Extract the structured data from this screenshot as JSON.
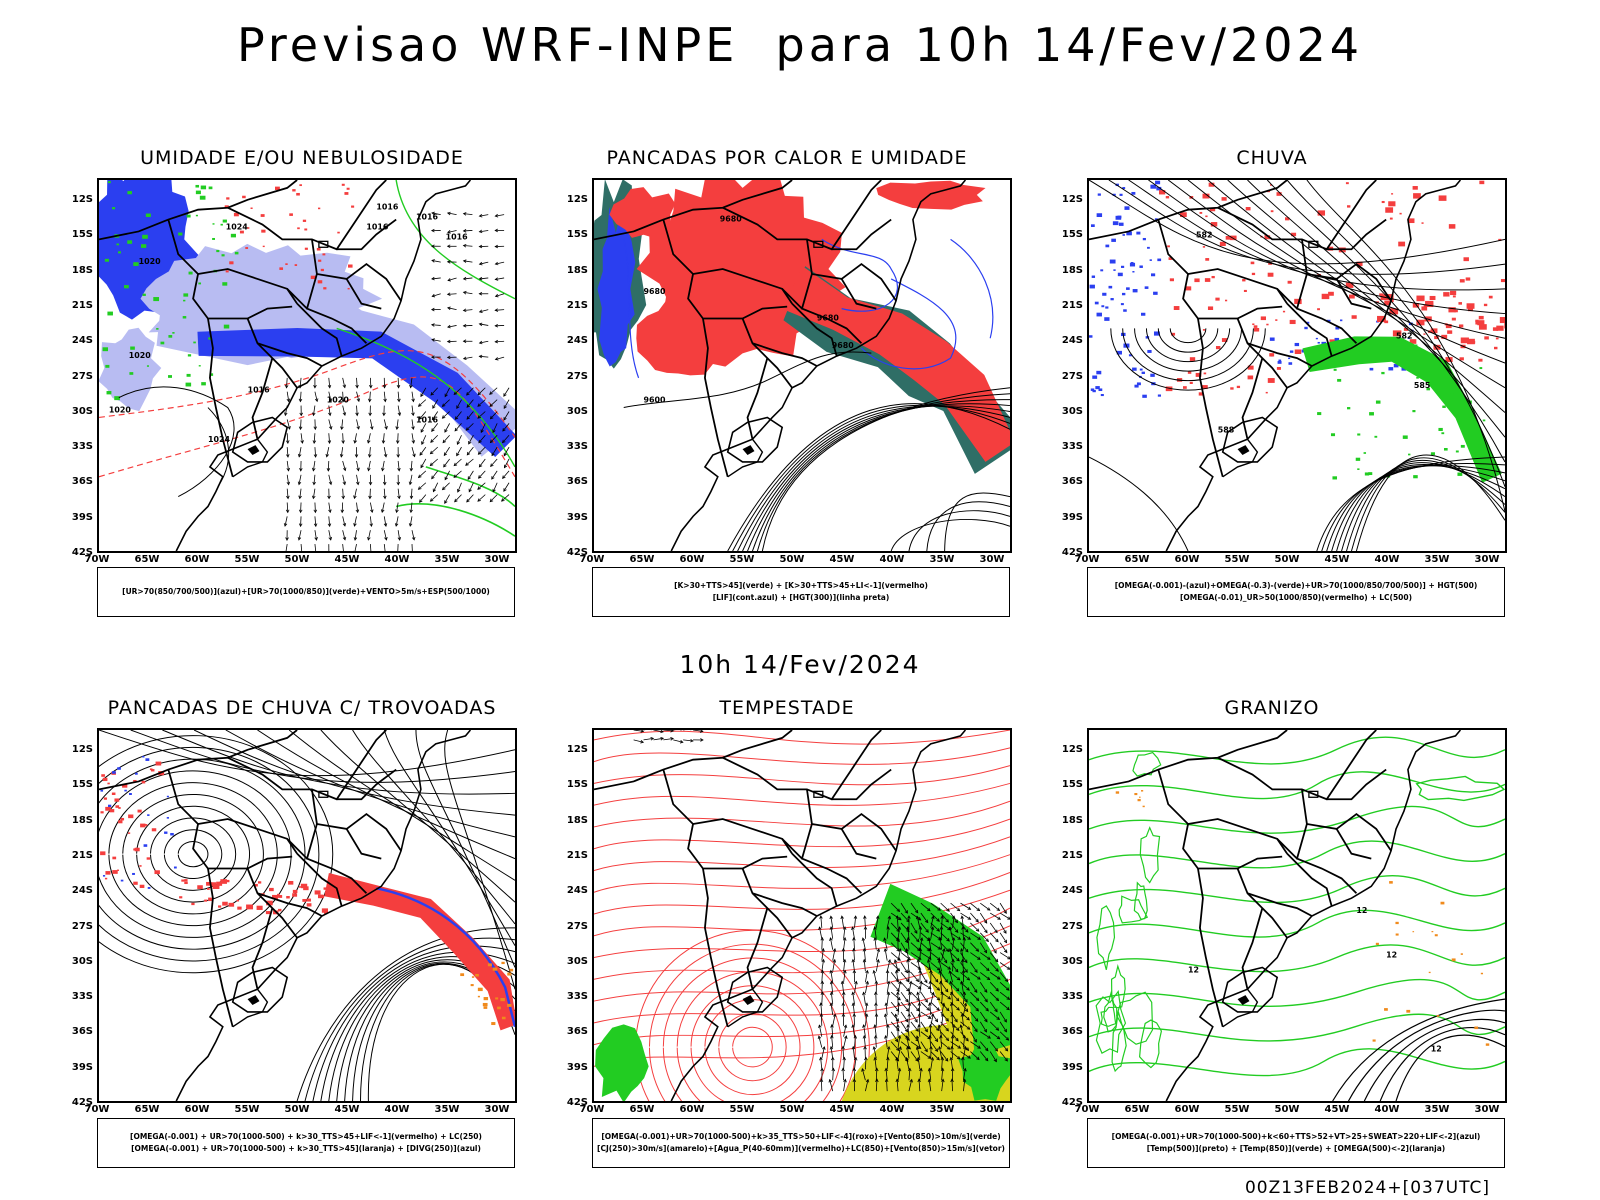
{
  "title": "Previsao WRF-INPE  para 10h 14/Fev/2024",
  "mid_title": "10h 14/Fev/2024",
  "footer": "00Z13FEB2024+[037UTC]",
  "lat_labels": [
    "12S",
    "15S",
    "18S",
    "21S",
    "24S",
    "27S",
    "30S",
    "33S",
    "36S",
    "39S",
    "42S"
  ],
  "lon_labels": [
    "70W",
    "65W",
    "60W",
    "55W",
    "50W",
    "45W",
    "40W",
    "35W",
    "30W"
  ],
  "panels": [
    {
      "title": "UMIDADE E/OU NEBULOSIDADE",
      "legend": [
        "[UR>70(850/700/500)](azul)+[UR>70(1000/850)](verde)+VENTO>5m/s+ESP(500/1000)"
      ]
    },
    {
      "title": "PANCADAS POR CALOR E UMIDADE",
      "legend": [
        "[K>30+TTS>45](verde) + [K>30+TTS>45+LI<-1](vermelho)",
        "[LIF](cont.azul) + [HGT(300)](linha preta)"
      ]
    },
    {
      "title": "CHUVA",
      "legend": [
        "[OMEGA(-0.001)-(azul)+OMEGA(-0.3)-(verde)+UR>70(1000/850/700/500)] + HGT(500)",
        "[OMEGA(-0.01)_UR>50(1000/850)(vermelho) + LC(500)"
      ]
    },
    {
      "title": "PANCADAS DE CHUVA C/ TROVOADAS",
      "legend": [
        "[OMEGA(-0.001) + UR>70(1000-500) + k>30_TTS>45+LIF<-1](vermelho) + LC(250)",
        "[OMEGA(-0.001) + UR>70(1000-500) + k>30_TTS>45](laranja) + [DIVG(250)](azul)"
      ]
    },
    {
      "title": "TEMPESTADE",
      "legend": [
        "[OMEGA(-0.001)+UR>70(1000-500)+k>35_TTS>50+LIF<-4](roxo)+[Vento(850)>10m/s](verde)",
        "[CJ(250)>30m/s](amarelo)+[Agua_P(40-60mm)](vermelho)+LC(850)+[Vento(850)>15m/s](vetor)"
      ]
    },
    {
      "title": "GRANIZO",
      "legend": [
        "[OMEGA(-0.001)+UR>70(1000-500)+k<60+TTS>52+VT>25+SWEAT>220+LIF<-2](azul)",
        "[Temp(500)](preto) + [Temp(850)](verde) + [OMEGA(500)<-2](laranja)"
      ]
    }
  ],
  "contour_labels": {
    "p1": [
      "1016",
      "1016",
      "1016",
      "1020",
      "1024",
      "1020",
      "1016",
      "1016",
      "1024",
      "1020",
      "1020",
      "1016"
    ],
    "p2": [
      "9680",
      "9680",
      "9680",
      "9680",
      "9600"
    ],
    "p3": [
      "582",
      "588",
      "582",
      "585"
    ],
    "p6": [
      "12",
      "12",
      "12",
      "12"
    ]
  },
  "colors": {
    "blue": "#2b3ff0",
    "lightblue": "#b8bcf2",
    "green": "#22cc22",
    "red": "#f43e3e",
    "orange": "#f08a1c",
    "yellow": "#d8d51e",
    "teal": "#2f6e66"
  }
}
